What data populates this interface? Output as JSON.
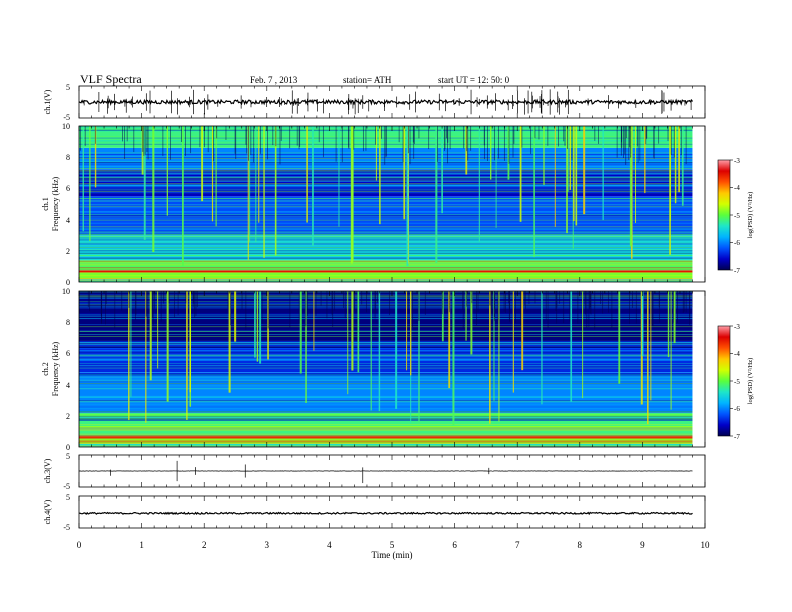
{
  "header": {
    "title": "VLF  Spectra",
    "date": "Feb. 7  , 2013",
    "station": "station= ATH",
    "start": "start  UT  =    12: 50: 0"
  },
  "colors": {
    "colormap": [
      "#000050",
      "#0000c8",
      "#0055ff",
      "#00b4ff",
      "#1ee6c8",
      "#5aff3c",
      "#d2ff00",
      "#ffc800",
      "#ff5000",
      "#dc0000",
      "#ff9ea8"
    ],
    "trace": "#000000",
    "axis": "#000000"
  },
  "chart_data": [
    {
      "type": "line",
      "name": "ch1-waveform",
      "ylabel": "ch.1(V)",
      "ytick_labels": [
        "5",
        "-5"
      ],
      "ylim": [
        -5,
        5
      ],
      "xlim": [
        0,
        10
      ],
      "baseline": 0,
      "noise_amplitude": 0.6,
      "spike_count": 90
    },
    {
      "type": "heatmap",
      "name": "ch1-spectrogram",
      "ylabel": "ch.1\nFrequency  (kHz)",
      "ytick_labels": [
        "0",
        "2",
        "4",
        "6",
        "8",
        "10"
      ],
      "ylim": [
        0,
        10
      ],
      "xlim": [
        0,
        9.8
      ],
      "colorbar_label": "log(PSD) (V²/Hz)",
      "colorbar_ticks": [
        "-3",
        "-4",
        "-5",
        "-6",
        "-7"
      ],
      "clim": [
        -7,
        -3
      ],
      "bands": [
        {
          "f0": 0,
          "f1": 0.2,
          "v": -5.5
        },
        {
          "f0": 0.2,
          "f1": 0.6,
          "v": -4.9
        },
        {
          "f0": 0.6,
          "f1": 0.75,
          "v": -3.5
        },
        {
          "f0": 0.75,
          "f1": 1.4,
          "v": -5.1
        },
        {
          "f0": 1.4,
          "f1": 3.0,
          "v": -5.5
        },
        {
          "f0": 3.0,
          "f1": 5.5,
          "v": -6.25
        },
        {
          "f0": 5.5,
          "f1": 7.2,
          "v": -6.6
        },
        {
          "f0": 7.2,
          "f1": 8.6,
          "v": -6.0
        },
        {
          "f0": 8.6,
          "f1": 10,
          "v": -5.2
        }
      ],
      "lines": [
        {
          "f": 2.3,
          "v": -5.6
        },
        {
          "f": 3.4,
          "v": -5.9
        },
        {
          "f": 4.5,
          "v": -6.0
        },
        {
          "f": 5.2,
          "v": -6.1
        },
        {
          "f": 6.2,
          "v": -5.8
        },
        {
          "f": 7.4,
          "v": -5.9
        }
      ],
      "burst_count": 55
    },
    {
      "type": "heatmap",
      "name": "ch2-spectrogram",
      "ylabel": "ch.2\nFrequency  (kHz)",
      "ytick_labels": [
        "0",
        "2",
        "4",
        "6",
        "8",
        "10"
      ],
      "ylim": [
        0,
        10
      ],
      "xlim": [
        0,
        9.8
      ],
      "colorbar_label": "log(PSD) (V²/Hz)",
      "colorbar_ticks": [
        "-3",
        "-4",
        "-5",
        "-6",
        "-7"
      ],
      "clim": [
        -7,
        -3
      ],
      "bands": [
        {
          "f0": 0,
          "f1": 0.2,
          "v": -5.5
        },
        {
          "f0": 0.2,
          "f1": 0.55,
          "v": -4.9
        },
        {
          "f0": 0.55,
          "f1": 0.7,
          "v": -3.4
        },
        {
          "f0": 0.7,
          "f1": 2.2,
          "v": -5.2
        },
        {
          "f0": 2.2,
          "f1": 4.8,
          "v": -6.0
        },
        {
          "f0": 4.8,
          "f1": 6.8,
          "v": -6.4
        },
        {
          "f0": 6.8,
          "f1": 10,
          "v": -6.85
        }
      ],
      "lines": [
        {
          "f": 1.3,
          "v": -4.8
        },
        {
          "f": 2.0,
          "v": -5.0
        },
        {
          "f": 3.2,
          "v": -5.7
        },
        {
          "f": 5.6,
          "v": -6.0
        },
        {
          "f": 6.4,
          "v": -6.9
        }
      ],
      "burst_count": 50
    },
    {
      "type": "line",
      "name": "ch3-waveform",
      "ylabel": "ch.3(V)",
      "ytick_labels": [
        "5",
        "-5"
      ],
      "ylim": [
        -5,
        5
      ],
      "xlim": [
        0,
        10
      ],
      "baseline": 0,
      "noise_amplitude": 0.05,
      "spike_count": 6
    },
    {
      "type": "line",
      "name": "ch4-waveform",
      "ylabel": "ch.4(V)",
      "ytick_labels": [
        "5",
        "-5"
      ],
      "ylim": [
        -5,
        5
      ],
      "xlim": [
        0,
        10
      ],
      "baseline": -0.4,
      "noise_amplitude": 0.25,
      "spike_count": 0
    }
  ],
  "xaxis": {
    "label": "Time  (min)",
    "tick_labels": [
      "0",
      "1",
      "2",
      "3",
      "4",
      "5",
      "6",
      "7",
      "8",
      "9",
      "10"
    ],
    "xlim": [
      0,
      10
    ]
  }
}
